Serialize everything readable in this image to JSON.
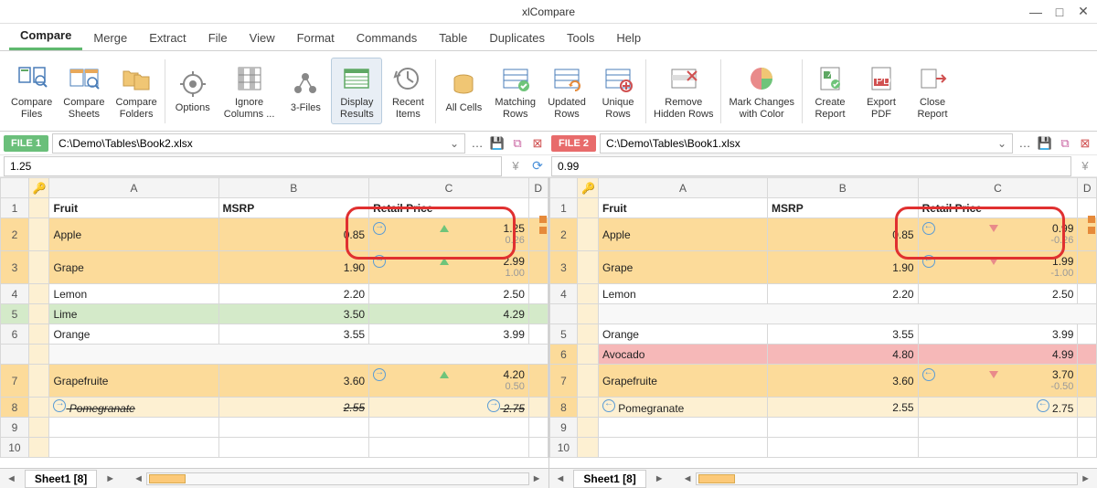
{
  "app": {
    "title": "xlCompare"
  },
  "menu": {
    "items": [
      "Compare",
      "Merge",
      "Extract",
      "File",
      "View",
      "Format",
      "Commands",
      "Table",
      "Duplicates",
      "Tools",
      "Help"
    ],
    "active": 0
  },
  "ribbon": [
    {
      "id": "compare-files",
      "label": "Compare\nFiles"
    },
    {
      "id": "compare-sheets",
      "label": "Compare\nSheets"
    },
    {
      "id": "compare-folders",
      "label": "Compare\nFolders"
    },
    {
      "sep": true
    },
    {
      "id": "options",
      "label": "Options"
    },
    {
      "id": "ignore-columns",
      "label": "Ignore\nColumns ..."
    },
    {
      "id": "3-files",
      "label": "3-Files"
    },
    {
      "id": "display-results",
      "label": "Display\nResults",
      "active": true
    },
    {
      "id": "recent-items",
      "label": "Recent\nItems"
    },
    {
      "sep": true
    },
    {
      "id": "all-cells",
      "label": "All Cells"
    },
    {
      "id": "matching-rows",
      "label": "Matching\nRows"
    },
    {
      "id": "updated-rows",
      "label": "Updated\nRows"
    },
    {
      "id": "unique-rows",
      "label": "Unique\nRows"
    },
    {
      "sep": true
    },
    {
      "id": "remove-hidden",
      "label": "Remove\nHidden Rows"
    },
    {
      "sep": true
    },
    {
      "id": "mark-changes",
      "label": "Mark Changes\nwith Color"
    },
    {
      "sep": true
    },
    {
      "id": "create-report",
      "label": "Create\nReport"
    },
    {
      "id": "export-pdf",
      "label": "Export\nPDF"
    },
    {
      "id": "close-report",
      "label": "Close\nReport"
    }
  ],
  "pane1": {
    "tag": "FILE 1",
    "path": "C:\\Demo\\Tables\\Book2.xlsx",
    "formula": "1.25",
    "cols": [
      "A",
      "B",
      "C",
      "D"
    ],
    "headers": {
      "A": "Fruit",
      "B": "MSRP",
      "C": "Retail Price"
    },
    "rows": [
      {
        "n": 1,
        "header": true
      },
      {
        "n": 2,
        "hl": "orange",
        "A": "Apple",
        "B": "0.85",
        "C": "1.25",
        "Csub": "0.26",
        "tri": "up",
        "boxed": true,
        "arrow": "right"
      },
      {
        "n": 3,
        "hl": "orange",
        "A": "Grape",
        "B": "1.90",
        "C": "2.99",
        "Csub": "1.00",
        "tri": "up",
        "arrow": "right"
      },
      {
        "n": 4,
        "A": "Lemon",
        "B": "2.20",
        "C": "2.50"
      },
      {
        "n": 5,
        "hl": "green",
        "A": "Lime",
        "B": "3.50",
        "C": "4.29"
      },
      {
        "n": 6,
        "A": "Orange",
        "B": "3.55",
        "C": "3.99"
      },
      {
        "gap": true
      },
      {
        "n": 7,
        "hl": "orange",
        "A": "Grapefruite",
        "B": "3.60",
        "C": "4.20",
        "Csub": "0.50",
        "tri": "up",
        "arrow": "right"
      },
      {
        "n": 8,
        "hl": "lightorange",
        "A": "Pomegranate",
        "B": "2.55",
        "C": "2.75",
        "strike": true,
        "arrowA": "right",
        "arrowC": "right"
      },
      {
        "n": 9
      },
      {
        "n": 10
      }
    ],
    "sheet": "Sheet1 [8]"
  },
  "pane2": {
    "tag": "FILE 2",
    "path": "C:\\Demo\\Tables\\Book1.xlsx",
    "formula": "0.99",
    "cols": [
      "A",
      "B",
      "C",
      "D"
    ],
    "headers": {
      "A": "Fruit",
      "B": "MSRP",
      "C": "Retail Price"
    },
    "rows": [
      {
        "n": 1,
        "header": true
      },
      {
        "n": 2,
        "hl": "orange",
        "A": "Apple",
        "B": "0.85",
        "C": "0.99",
        "Csub": "-0.26",
        "tri": "dn",
        "boxed": true,
        "arrow": "left"
      },
      {
        "n": 3,
        "hl": "orange",
        "A": "Grape",
        "B": "1.90",
        "C": "1.99",
        "Csub": "-1.00",
        "tri": "dn",
        "arrow": "left"
      },
      {
        "n": 4,
        "A": "Lemon",
        "B": "2.20",
        "C": "2.50"
      },
      {
        "gap": true
      },
      {
        "n": 5,
        "A": "Orange",
        "B": "3.55",
        "C": "3.99"
      },
      {
        "n": 6,
        "hl": "pink",
        "A": "Avocado",
        "B": "4.80",
        "C": "4.99",
        "sideArrow": "left"
      },
      {
        "n": 7,
        "hl": "orange",
        "A": "Grapefruite",
        "B": "3.60",
        "C": "3.70",
        "Csub": "-0.50",
        "tri": "dn",
        "arrow": "left"
      },
      {
        "n": 8,
        "hl": "lightorange",
        "A": "Pomegranate",
        "B": "2.55",
        "C": "2.75",
        "arrowA": "left",
        "arrowC": "left"
      },
      {
        "n": 9
      },
      {
        "n": 10
      }
    ],
    "sheet": "Sheet1 [8]"
  },
  "colors": {
    "green": "#6abf7a",
    "red": "#e86b6b",
    "orange": "#fcdb9a",
    "lightorange": "#fdf0d2",
    "greenrow": "#d4eac9",
    "pinkrow": "#f6b8b8",
    "redbox": "#e03030"
  }
}
